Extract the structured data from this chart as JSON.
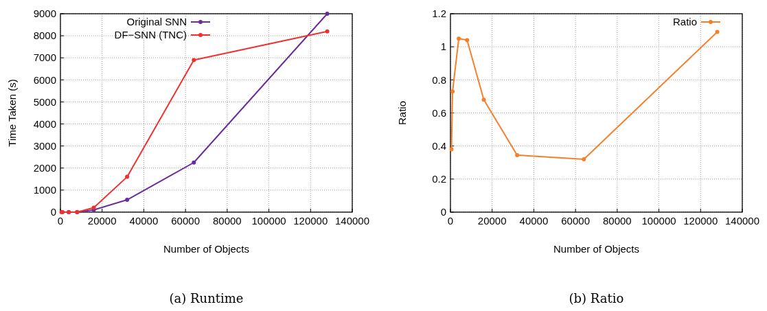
{
  "chart_data": [
    {
      "type": "line",
      "title": "(a) Runtime",
      "xlabel": "Number of Objects",
      "ylabel": "Time Taken (s)",
      "x": [
        500,
        1000,
        4000,
        8000,
        16000,
        32000,
        64000,
        128000
      ],
      "series": [
        {
          "name": "Original SNN",
          "color": "#6a2c9e",
          "values": [
            null,
            null,
            0,
            0,
            100,
            560,
            2250,
            9000
          ]
        },
        {
          "name": "DF−SNN (TNC)",
          "color": "#f03030",
          "values": [
            0,
            0,
            0,
            0,
            200,
            1600,
            6900,
            8200
          ]
        }
      ],
      "xlim": [
        0,
        140000
      ],
      "xticks": [
        0,
        20000,
        40000,
        60000,
        80000,
        100000,
        120000,
        140000
      ],
      "ylim": [
        0,
        9000
      ],
      "yticks": [
        0,
        1000,
        2000,
        3000,
        4000,
        5000,
        6000,
        7000,
        8000,
        9000
      ],
      "grid": true,
      "legend": "top left",
      "marker": "circle",
      "line_style": "solid"
    },
    {
      "type": "line",
      "title": "(b) Ratio",
      "xlabel": "Number of Objects",
      "ylabel": "Ratio",
      "x": [
        500,
        1000,
        4000,
        8000,
        16000,
        32000,
        64000,
        128000
      ],
      "series": [
        {
          "name": "Ratio",
          "color": "#f57f2a",
          "values": [
            0.38,
            0.73,
            1.05,
            1.04,
            0.68,
            0.345,
            0.32,
            1.09
          ]
        }
      ],
      "xlim": [
        0,
        140000
      ],
      "xticks": [
        0,
        20000,
        40000,
        60000,
        80000,
        100000,
        120000,
        140000
      ],
      "ylim": [
        0,
        1.2
      ],
      "yticks": [
        0,
        0.2,
        0.4,
        0.6,
        0.8,
        1,
        1.2
      ],
      "grid": true,
      "legend": "top right",
      "marker": "circle",
      "line_style": "solid"
    }
  ]
}
